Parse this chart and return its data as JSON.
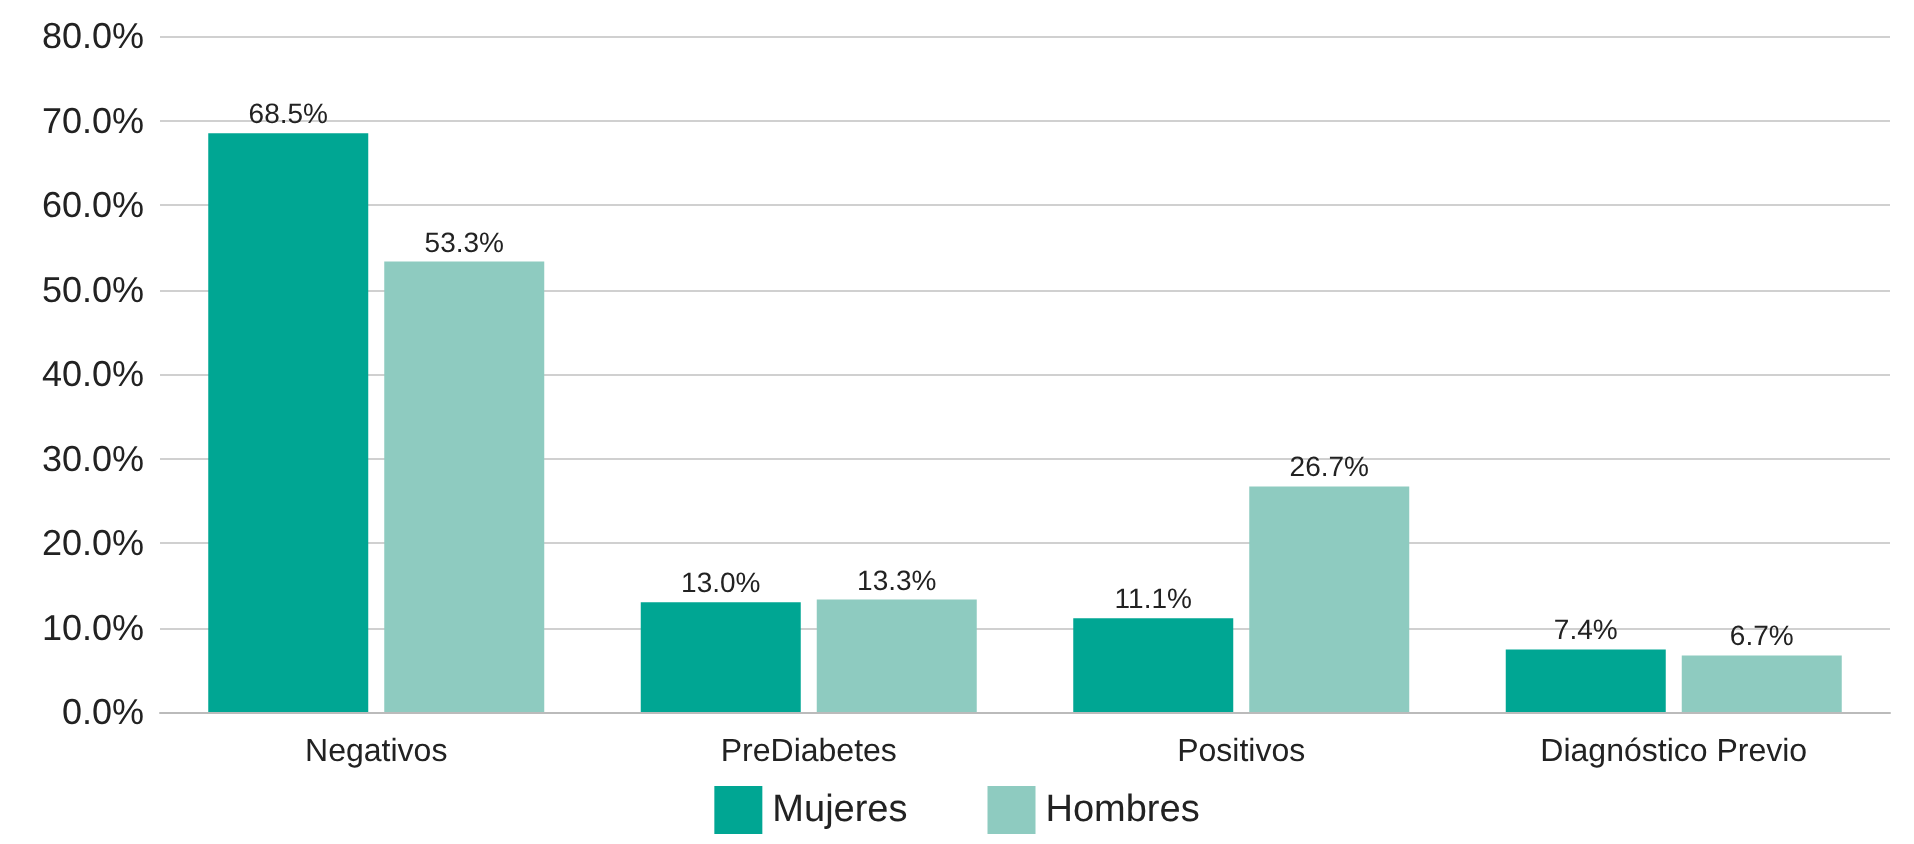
{
  "chart_data": {
    "type": "bar",
    "categories": [
      "Negativos",
      "PreDiabetes",
      "Positivos",
      "Diagnóstico Previo"
    ],
    "series": [
      {
        "name": "Mujeres",
        "color": "#00a693",
        "values": [
          68.5,
          13.0,
          11.1,
          7.4
        ],
        "value_labels": [
          "68.5%",
          "13.0%",
          "11.1%",
          "7.4%"
        ]
      },
      {
        "name": "Hombres",
        "color": "#8ecbc0",
        "values": [
          53.3,
          13.3,
          26.7,
          6.7
        ],
        "value_labels": [
          "53.3%",
          "13.3%",
          "26.7%",
          "6.7%"
        ]
      }
    ],
    "ylim": [
      0,
      80
    ],
    "yticks": [
      {
        "value": 0,
        "label": "0.0%"
      },
      {
        "value": 10,
        "label": "10.0%"
      },
      {
        "value": 20,
        "label": "20.0%"
      },
      {
        "value": 30,
        "label": "30.0%"
      },
      {
        "value": 40,
        "label": "40.0%"
      },
      {
        "value": 50,
        "label": "50.0%"
      },
      {
        "value": 60,
        "label": "60.0%"
      },
      {
        "value": 70,
        "label": "70.0%"
      },
      {
        "value": 80,
        "label": "80.0%"
      }
    ],
    "grid": "y",
    "legend": "bottom"
  }
}
